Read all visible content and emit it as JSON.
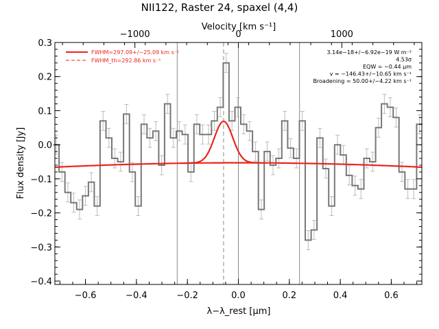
{
  "chart_data": {
    "type": "line",
    "title": "NII122, Raster 24, spaxel (4,4)",
    "xlabel": "λ−λ_rest [μm]",
    "ylabel": "Flux density [Jy]",
    "top_axis_label": "Velocity [km s⁻¹]",
    "xlim": [
      -0.72,
      0.72
    ],
    "ylim": [
      -0.41,
      0.3
    ],
    "top_axis_ticks": [
      {
        "label": "−1000",
        "x": -0.406
      },
      {
        "label": "0",
        "x": 0.0
      },
      {
        "label": "1000",
        "x": 0.406
      }
    ],
    "bottom_ticks": [
      {
        "label": "−0.6",
        "x": -0.6
      },
      {
        "label": "−0.4",
        "x": -0.4
      },
      {
        "label": "−0.2",
        "x": -0.2
      },
      {
        "label": "0.0",
        "x": 0.0
      },
      {
        "label": "0.2",
        "x": 0.2
      },
      {
        "label": "0.4",
        "x": 0.4
      },
      {
        "label": "0.6",
        "x": 0.6
      }
    ],
    "y_ticks": [
      {
        "label": "0.3",
        "y": 0.3
      },
      {
        "label": "0.2",
        "y": 0.2
      },
      {
        "label": "0.1",
        "y": 0.1
      },
      {
        "label": "0.0",
        "y": 0.0
      },
      {
        "label": "−0.1",
        "y": -0.1
      },
      {
        "label": "−0.2",
        "y": -0.2
      },
      {
        "label": "−0.3",
        "y": -0.3
      },
      {
        "label": "−0.4",
        "y": -0.4
      }
    ],
    "vertical_lines": [
      {
        "x": -0.24,
        "style": "solid"
      },
      {
        "x": 0.0,
        "style": "solid"
      },
      {
        "x": 0.24,
        "style": "solid"
      },
      {
        "x": -0.058,
        "style": "dashed"
      }
    ],
    "spectrum": {
      "x": [
        -0.715,
        -0.692,
        -0.669,
        -0.646,
        -0.623,
        -0.6,
        -0.577,
        -0.554,
        -0.531,
        -0.508,
        -0.485,
        -0.462,
        -0.439,
        -0.416,
        -0.393,
        -0.37,
        -0.347,
        -0.324,
        -0.301,
        -0.278,
        -0.255,
        -0.232,
        -0.209,
        -0.186,
        -0.163,
        -0.14,
        -0.117,
        -0.094,
        -0.071,
        -0.048,
        -0.025,
        -0.002,
        0.021,
        0.044,
        0.067,
        0.09,
        0.113,
        0.136,
        0.159,
        0.182,
        0.205,
        0.228,
        0.251,
        0.274,
        0.297,
        0.32,
        0.343,
        0.366,
        0.389,
        0.412,
        0.435,
        0.458,
        0.481,
        0.504,
        0.527,
        0.55,
        0.573,
        0.596,
        0.619,
        0.642,
        0.665,
        0.688,
        0.711
      ],
      "y": [
        0.0,
        -0.08,
        -0.14,
        -0.17,
        -0.19,
        -0.15,
        -0.11,
        -0.18,
        0.07,
        0.02,
        -0.04,
        -0.05,
        0.09,
        -0.08,
        -0.18,
        0.06,
        0.02,
        0.04,
        -0.06,
        0.12,
        0.02,
        0.04,
        0.03,
        -0.08,
        0.06,
        0.03,
        0.03,
        0.07,
        0.11,
        0.24,
        0.07,
        0.11,
        0.06,
        0.04,
        -0.02,
        -0.19,
        -0.02,
        -0.06,
        -0.04,
        0.07,
        -0.01,
        -0.04,
        0.07,
        -0.28,
        -0.25,
        0.02,
        -0.07,
        -0.18,
        0.0,
        -0.03,
        -0.09,
        -0.12,
        -0.13,
        -0.04,
        -0.05,
        0.05,
        0.12,
        0.11,
        0.08,
        -0.08,
        -0.13,
        -0.13,
        0.06
      ]
    },
    "errors": 0.028,
    "fit": {
      "baseline_left": -0.066,
      "baseline_right": -0.066,
      "baseline_peak": -0.053,
      "gaussian_center": -0.058,
      "gaussian_amplitude": 0.122,
      "gaussian_sigma": 0.036
    },
    "legend": [
      {
        "label": "FWHM=297.09+/−25.09 km s⁻¹",
        "style": "solid",
        "color": "#e8251c"
      },
      {
        "label": "FWHM_th=292.86 km s⁻¹",
        "style": "dashed",
        "color": "#e8251c"
      }
    ],
    "annotations": [
      "3.14e−18+/−6.92e−19 W m⁻²",
      "4.53σ",
      "EQW = −0.44 μm",
      "v = −146.43+/−10.65 km s⁻¹",
      "Broadening = 50.00+/−4.22 km s⁻¹"
    ],
    "colors": {
      "spectrum": "#777777",
      "errorbars": "#bbbbbb",
      "fit": "#e8251c",
      "vlines": "#888888"
    }
  }
}
